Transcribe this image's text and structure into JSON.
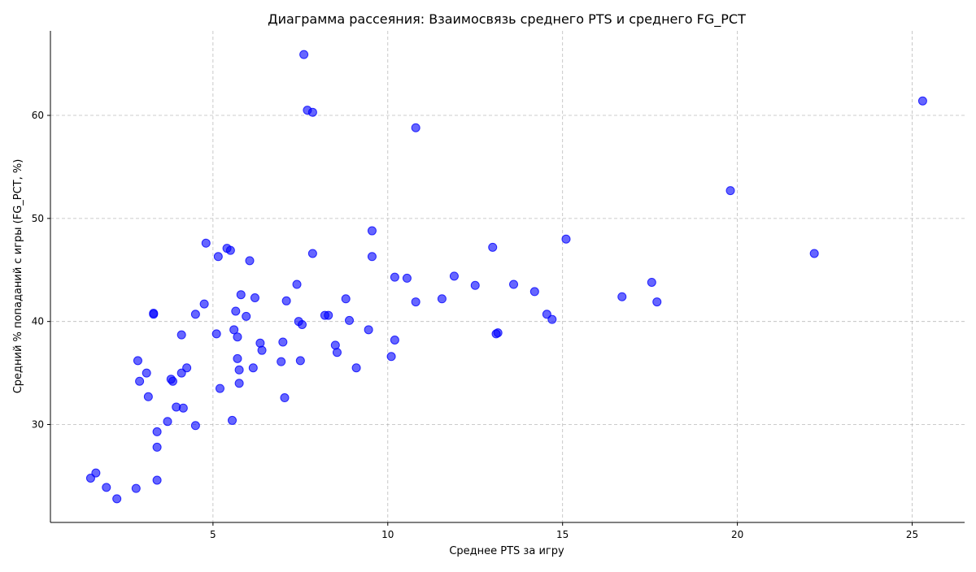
{
  "chart_data": {
    "type": "scatter",
    "title": "Диаграмма рассеяния: Взаимосвязь среднего PTS и среднего FG_PCT",
    "xlabel": "Среднее PTS за игру",
    "ylabel": "Средний % попаданий с игры (FG_PCT, %)",
    "xlim": [
      0.35,
      26.5
    ],
    "ylim": [
      20.5,
      68.2
    ],
    "xticks": [
      5,
      10,
      15,
      20,
      25
    ],
    "yticks": [
      30,
      40,
      50,
      60
    ],
    "xtick_labels": [
      "5",
      "10",
      "15",
      "20",
      "25"
    ],
    "ytick_labels": [
      "30",
      "40",
      "50",
      "60"
    ],
    "grid": true,
    "point_color": "#0000ff",
    "point_opacity": 0.6,
    "points": [
      [
        1.5,
        24.8
      ],
      [
        1.65,
        25.3
      ],
      [
        1.95,
        23.9
      ],
      [
        2.25,
        22.8
      ],
      [
        2.8,
        23.8
      ],
      [
        2.85,
        36.2
      ],
      [
        2.9,
        34.2
      ],
      [
        3.1,
        35.0
      ],
      [
        3.15,
        32.7
      ],
      [
        3.3,
        40.8
      ],
      [
        3.3,
        40.7
      ],
      [
        3.4,
        29.3
      ],
      [
        3.4,
        27.8
      ],
      [
        3.4,
        24.6
      ],
      [
        3.7,
        30.3
      ],
      [
        3.8,
        34.4
      ],
      [
        3.85,
        34.2
      ],
      [
        3.95,
        31.7
      ],
      [
        4.1,
        38.7
      ],
      [
        4.1,
        35.0
      ],
      [
        4.15,
        31.6
      ],
      [
        4.25,
        35.5
      ],
      [
        4.5,
        40.7
      ],
      [
        4.5,
        29.9
      ],
      [
        4.75,
        41.7
      ],
      [
        4.8,
        47.6
      ],
      [
        5.1,
        38.8
      ],
      [
        5.15,
        46.3
      ],
      [
        5.2,
        33.5
      ],
      [
        5.4,
        47.1
      ],
      [
        5.5,
        46.9
      ],
      [
        5.55,
        30.4
      ],
      [
        5.6,
        39.2
      ],
      [
        5.65,
        41.0
      ],
      [
        5.7,
        36.4
      ],
      [
        5.7,
        38.5
      ],
      [
        5.75,
        34.0
      ],
      [
        5.75,
        35.3
      ],
      [
        5.8,
        42.6
      ],
      [
        5.95,
        40.5
      ],
      [
        6.05,
        45.9
      ],
      [
        6.15,
        35.5
      ],
      [
        6.2,
        42.3
      ],
      [
        6.35,
        37.9
      ],
      [
        6.4,
        37.2
      ],
      [
        6.95,
        36.1
      ],
      [
        7.0,
        38.0
      ],
      [
        7.05,
        32.6
      ],
      [
        7.1,
        42.0
      ],
      [
        7.4,
        43.6
      ],
      [
        7.45,
        40.0
      ],
      [
        7.5,
        36.2
      ],
      [
        7.55,
        39.7
      ],
      [
        7.6,
        65.9
      ],
      [
        7.7,
        60.5
      ],
      [
        7.85,
        60.3
      ],
      [
        7.85,
        46.6
      ],
      [
        8.2,
        40.6
      ],
      [
        8.3,
        40.6
      ],
      [
        8.5,
        37.7
      ],
      [
        8.55,
        37.0
      ],
      [
        8.8,
        42.2
      ],
      [
        8.9,
        40.1
      ],
      [
        9.1,
        35.5
      ],
      [
        9.45,
        39.2
      ],
      [
        9.55,
        48.8
      ],
      [
        9.55,
        46.3
      ],
      [
        10.1,
        36.6
      ],
      [
        10.2,
        38.2
      ],
      [
        10.2,
        44.3
      ],
      [
        10.55,
        44.2
      ],
      [
        10.8,
        41.9
      ],
      [
        10.8,
        58.8
      ],
      [
        11.55,
        42.2
      ],
      [
        11.9,
        44.4
      ],
      [
        12.5,
        43.5
      ],
      [
        13.0,
        47.2
      ],
      [
        13.1,
        38.8
      ],
      [
        13.15,
        38.9
      ],
      [
        13.6,
        43.6
      ],
      [
        14.2,
        42.9
      ],
      [
        14.55,
        40.7
      ],
      [
        14.7,
        40.2
      ],
      [
        15.1,
        48.0
      ],
      [
        16.7,
        42.4
      ],
      [
        17.55,
        43.8
      ],
      [
        17.7,
        41.9
      ],
      [
        19.8,
        52.7
      ],
      [
        22.2,
        46.6
      ],
      [
        25.3,
        61.4
      ]
    ]
  }
}
